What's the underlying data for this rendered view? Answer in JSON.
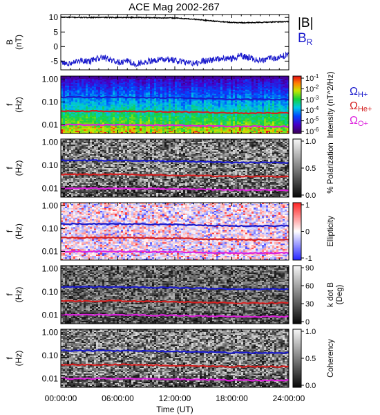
{
  "chart_data": {
    "type": "heatmap",
    "title": "ACE Mag 2002-267",
    "xlabel": "Time (UT)",
    "x_ticks": [
      "00:00:00",
      "06:00:00",
      "12:00:00",
      "18:00:00",
      "24:00:00"
    ],
    "x_range_hours": [
      0,
      24
    ],
    "panels": [
      {
        "id": "magnetic-field",
        "type": "line",
        "ylabel": [
          "B",
          "(nT)"
        ],
        "ylim": [
          -8,
          11
        ],
        "y_ticks": [
          "10",
          "5",
          "0",
          "-5"
        ],
        "y_tick_values": [
          10,
          5,
          0,
          -5
        ],
        "series": [
          {
            "name": "|B|",
            "color": "#000000",
            "x": [
              0,
              2,
              4,
              6,
              8,
              10,
              12,
              13,
              14,
              15,
              16,
              17,
              18,
              19,
              20,
              21,
              22,
              23,
              24
            ],
            "y": [
              10.1,
              10.0,
              10.0,
              10.0,
              10.0,
              9.9,
              9.8,
              9.6,
              9.4,
              9.1,
              8.8,
              8.5,
              8.3,
              8.2,
              8.2,
              8.3,
              8.4,
              8.5,
              8.6
            ]
          },
          {
            "name": "B_R",
            "color": "#1a1acc",
            "x": [
              0,
              1,
              2,
              3,
              4,
              5,
              6,
              7,
              8,
              9,
              10,
              11,
              12,
              13,
              14,
              15,
              16,
              17,
              18,
              19,
              20,
              21,
              22,
              23,
              24
            ],
            "y": [
              -5.8,
              -6.0,
              -4.8,
              -5.2,
              -3.8,
              -4.2,
              -5.5,
              -5.0,
              -6.0,
              -5.2,
              -4.6,
              -4.2,
              -4.8,
              -5.3,
              -5.8,
              -5.0,
              -4.5,
              -3.8,
              -4.2,
              -3.0,
              -4.0,
              -4.8,
              -4.2,
              -3.5,
              -2.8
            ]
          }
        ],
        "legend": [
          {
            "label": "|B|",
            "color": "#000000"
          },
          {
            "label": "B",
            "sub": "R",
            "color": "#1a1acc"
          }
        ]
      },
      {
        "id": "intensity",
        "type": "heatmap",
        "ylabel": [
          "f",
          "(Hz)"
        ],
        "y_ticks": [
          "1.00",
          "0.10",
          "0.01"
        ],
        "colorbar_label": "Intensity (nT^2/Hz)",
        "colorbar_ticks": [
          "10^-1",
          "10^-2",
          "10^-3",
          "10^-4",
          "10^-5",
          "10^-6"
        ],
        "colormap": "rainbow",
        "legend": [
          {
            "label": "Ω",
            "sub": "H+",
            "color": "#1a1acc"
          },
          {
            "label": "Ω",
            "sub": "He+",
            "color": "#d42020"
          },
          {
            "label": "Ω",
            "sub": "O+",
            "color": "#dd22dd"
          }
        ]
      },
      {
        "id": "polarization",
        "type": "heatmap",
        "ylabel": [
          "f",
          "(Hz)"
        ],
        "y_ticks": [
          "1.00",
          "0.10",
          "0.01"
        ],
        "colorbar_label": "% Polarization",
        "colorbar_ticks": [
          "1.0",
          "0.5",
          "0.0"
        ],
        "colormap": "gray"
      },
      {
        "id": "ellipticity",
        "type": "heatmap",
        "ylabel": [
          "f",
          "(Hz)"
        ],
        "y_ticks": [
          "1.00",
          "0.10",
          "0.01"
        ],
        "colorbar_label": "Ellipticity",
        "colorbar_ticks": [
          "1",
          "0",
          "-1"
        ],
        "colormap": "bwr"
      },
      {
        "id": "k-dot-b",
        "type": "heatmap",
        "ylabel": [
          "f",
          "(Hz)"
        ],
        "y_ticks": [
          "1.00",
          "0.10",
          "0.01"
        ],
        "colorbar_label": [
          "k dot B",
          "(Deg)"
        ],
        "colorbar_ticks": [
          "90",
          "60",
          "30",
          "0"
        ],
        "colormap": "gray"
      },
      {
        "id": "coherency",
        "type": "heatmap",
        "ylabel": [
          "f",
          "(Hz)"
        ],
        "y_ticks": [
          "1.00",
          "0.10",
          "0.01"
        ],
        "colorbar_label": "Coherency",
        "colorbar_ticks": [
          "1.0",
          "0.5",
          "0.0"
        ],
        "colormap": "gray"
      }
    ],
    "cyclotron_lines_hz": {
      "x": [
        0,
        6,
        12,
        18,
        24
      ],
      "H+": [
        0.16,
        0.16,
        0.15,
        0.13,
        0.13
      ],
      "He+": [
        0.04,
        0.04,
        0.037,
        0.033,
        0.033
      ],
      "O+": [
        0.01,
        0.01,
        0.0095,
        0.0085,
        0.0085
      ]
    },
    "colors": {
      "H+": "#1a1acc",
      "He+": "#d42020",
      "O+": "#dd22dd"
    }
  }
}
